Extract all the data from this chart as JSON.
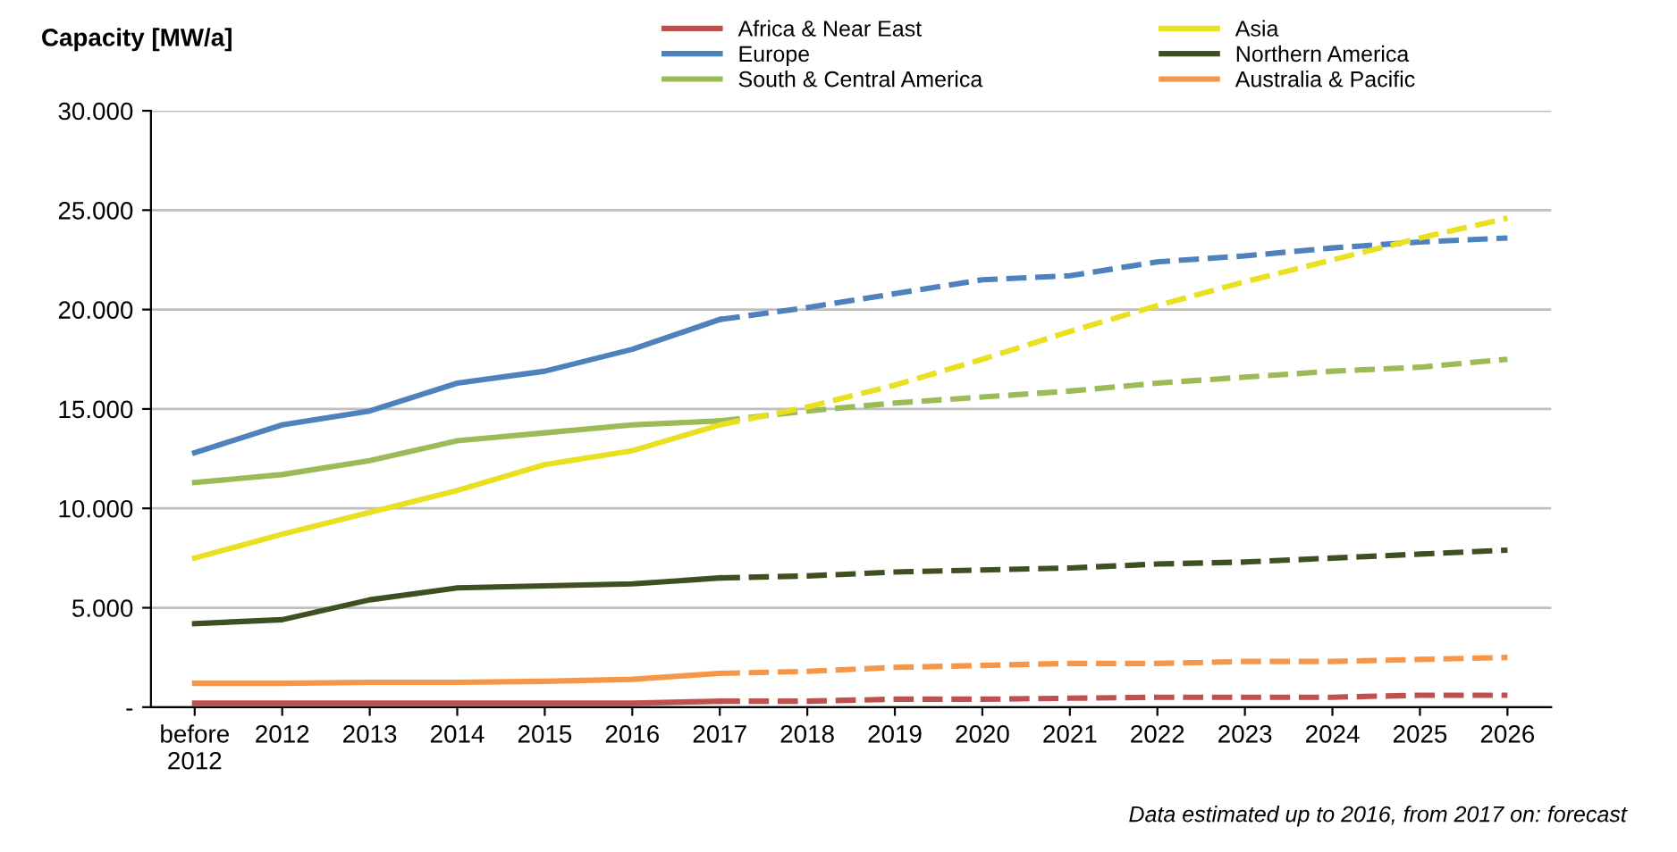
{
  "chart_data": {
    "type": "line",
    "ylabel": "Capacity [MW/a]",
    "categories": [
      "before\n2012",
      "2012",
      "2013",
      "2014",
      "2015",
      "2016",
      "2017",
      "2018",
      "2019",
      "2020",
      "2021",
      "2022",
      "2023",
      "2024",
      "2025",
      "2026"
    ],
    "series": [
      {
        "name": "Africa & Near East",
        "color": "#c0504d",
        "line_style": "solid",
        "values": [
          200,
          200,
          200,
          200,
          200,
          200,
          300,
          null,
          null,
          null,
          null,
          null,
          null,
          null,
          null,
          null
        ]
      },
      {
        "name": "Europe",
        "color": "#4f81bd",
        "line_style": "solid",
        "values": [
          12800,
          14200,
          14900,
          16300,
          16900,
          18000,
          19500,
          null,
          null,
          null,
          null,
          null,
          null,
          null,
          null,
          null
        ]
      },
      {
        "name": "South & Central America",
        "color": "#9bbb59",
        "line_style": "solid",
        "values": [
          11300,
          11700,
          12400,
          13400,
          13800,
          14200,
          14400,
          null,
          null,
          null,
          null,
          null,
          null,
          null,
          null,
          null
        ]
      },
      {
        "name": "Asia",
        "color": "#e8e020",
        "line_style": "solid",
        "values": [
          7500,
          8700,
          9800,
          10900,
          12200,
          12900,
          14200,
          null,
          null,
          null,
          null,
          null,
          null,
          null,
          null,
          null
        ]
      },
      {
        "name": "Northern America",
        "color": "#3f5020",
        "line_style": "solid",
        "values": [
          4200,
          4400,
          5400,
          6000,
          6100,
          6200,
          6500,
          null,
          null,
          null,
          null,
          null,
          null,
          null,
          null,
          null
        ]
      },
      {
        "name": "Australia & Pacific",
        "color": "#f79646",
        "line_style": "solid",
        "values": [
          1200,
          1200,
          1250,
          1250,
          1300,
          1400,
          1700,
          null,
          null,
          null,
          null,
          null,
          null,
          null,
          null,
          null
        ]
      },
      {
        "color": "#c0504d",
        "line_style": "dashed",
        "values": [
          null,
          null,
          null,
          null,
          null,
          null,
          300,
          300,
          400,
          400,
          450,
          500,
          500,
          500,
          600,
          600
        ]
      },
      {
        "color": "#4f81bd",
        "line_style": "dashed",
        "values": [
          null,
          null,
          null,
          null,
          null,
          null,
          19500,
          20100,
          20800,
          21500,
          21700,
          22400,
          22700,
          23100,
          23400,
          23600
        ]
      },
      {
        "color": "#9bbb59",
        "line_style": "dashed",
        "values": [
          null,
          null,
          null,
          null,
          null,
          null,
          14400,
          14900,
          15300,
          15600,
          15900,
          16300,
          16600,
          16900,
          17100,
          17500
        ]
      },
      {
        "color": "#e8e020",
        "line_style": "dashed",
        "values": [
          null,
          null,
          null,
          null,
          null,
          null,
          14200,
          15100,
          16200,
          17500,
          18900,
          20200,
          21400,
          22500,
          23600,
          24600
        ]
      },
      {
        "color": "#3f5020",
        "line_style": "dashed",
        "values": [
          null,
          null,
          null,
          null,
          null,
          null,
          6500,
          6600,
          6800,
          6900,
          7000,
          7200,
          7300,
          7500,
          7700,
          7900
        ]
      },
      {
        "color": "#f79646",
        "line_style": "dashed",
        "values": [
          null,
          null,
          null,
          null,
          null,
          null,
          1700,
          1800,
          2000,
          2100,
          2200,
          2200,
          2300,
          2300,
          2400,
          2500
        ]
      }
    ],
    "ylim": [
      0,
      30000
    ],
    "yticks": [
      {
        "value": 0,
        "label": "-"
      },
      {
        "value": 5000,
        "label": "5.000"
      },
      {
        "value": 10000,
        "label": "10.000"
      },
      {
        "value": 15000,
        "label": "15.000"
      },
      {
        "value": 20000,
        "label": "20.000"
      },
      {
        "value": 25000,
        "label": "25.000"
      },
      {
        "value": 30000,
        "label": "30.000"
      }
    ],
    "grid": "y",
    "legend": "top",
    "marker": "none",
    "annotations": [
      "Data estimated up to 2016, from 2017 on: forecast"
    ]
  }
}
